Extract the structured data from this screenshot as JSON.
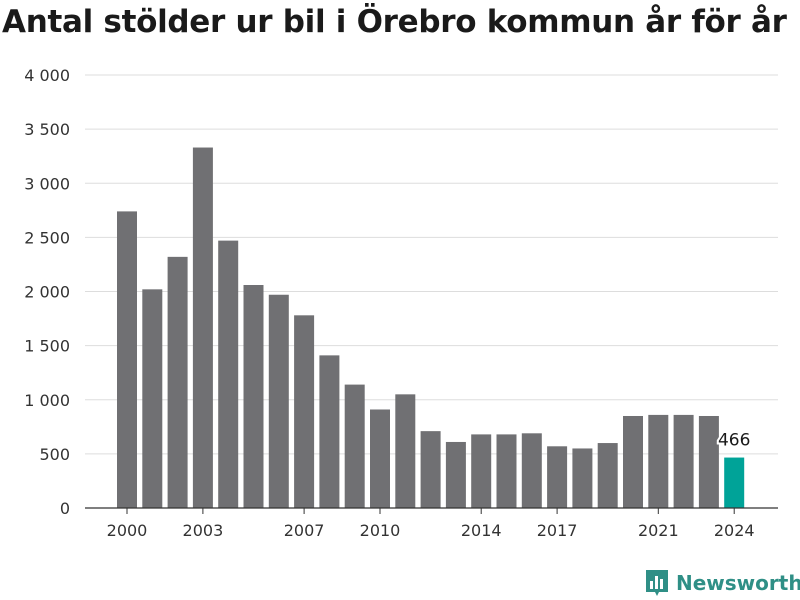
{
  "chart_data": {
    "type": "bar",
    "title": "Antal stölder ur bil i Örebro kommun år för år",
    "xlabel": "",
    "ylabel": "",
    "x": [
      2000,
      2001,
      2002,
      2003,
      2004,
      2005,
      2006,
      2007,
      2008,
      2009,
      2010,
      2011,
      2012,
      2013,
      2014,
      2015,
      2016,
      2017,
      2018,
      2019,
      2020,
      2021,
      2022,
      2023,
      2024
    ],
    "values": [
      2740,
      2020,
      2320,
      3330,
      2470,
      2060,
      1970,
      1780,
      1410,
      1140,
      910,
      1050,
      710,
      610,
      680,
      680,
      690,
      570,
      550,
      600,
      850,
      860,
      860,
      850,
      466
    ],
    "ylim": [
      0,
      4000
    ],
    "yticks": [
      0,
      500,
      1000,
      1500,
      2000,
      2500,
      3000,
      3500,
      4000
    ],
    "ytick_labels": [
      "0",
      "500",
      "1 000",
      "1 500",
      "2 000",
      "2 500",
      "3 000",
      "3 500",
      "4 000"
    ],
    "xticks": [
      2000,
      2003,
      2007,
      2010,
      2014,
      2017,
      2021,
      2024
    ],
    "highlight": {
      "x": 2024,
      "label": "466"
    },
    "grid": true,
    "colors": {
      "bar": "#707073",
      "highlight": "#00a398",
      "grid": "#dddddd",
      "axis": "#333333"
    }
  },
  "brand": {
    "name": "Newsworthy",
    "icon": "bar-chart-speech-icon",
    "color": "#2f8f86"
  }
}
